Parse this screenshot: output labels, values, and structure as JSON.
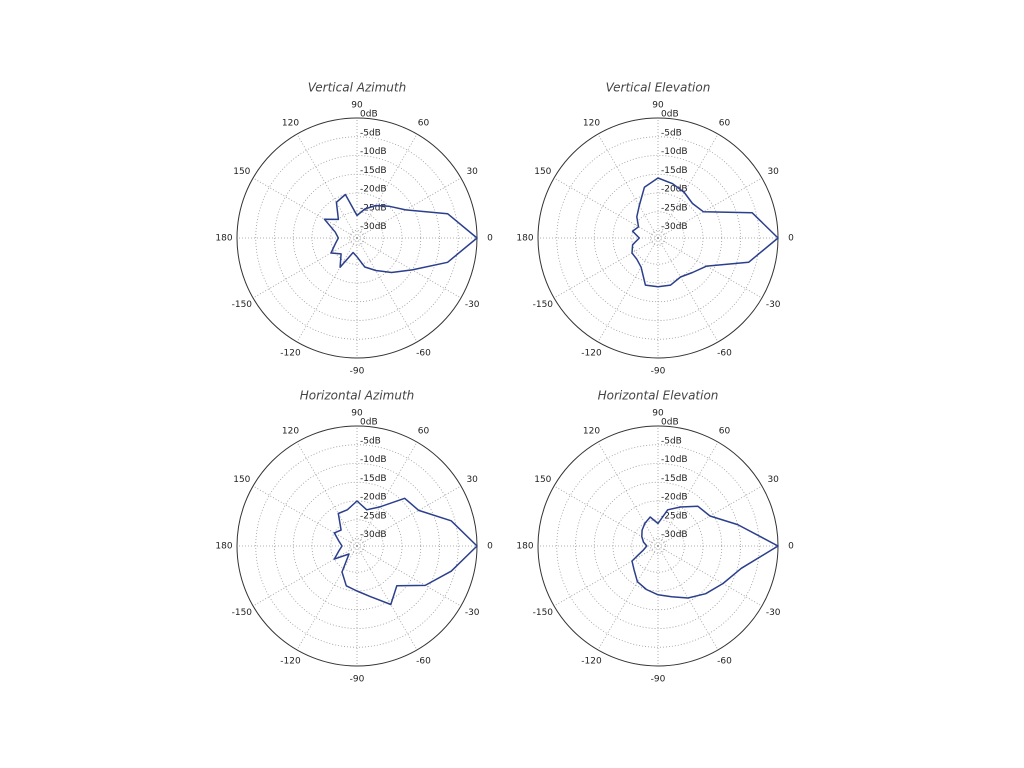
{
  "chart_data": [
    {
      "type": "polar",
      "title": "Vertical Azimuth",
      "theta": [
        0,
        15,
        30,
        45,
        60,
        75,
        90,
        105,
        120,
        135,
        150,
        165,
        180,
        195,
        210,
        225,
        240,
        255,
        270,
        285,
        300,
        315,
        330,
        345
      ],
      "series": [
        {
          "color": "#2b3f8c",
          "values": [
            0,
            -7,
            -17,
            -20,
            -22,
            -24,
            -26,
            -20,
            -21,
            -25,
            -22,
            -26,
            -27,
            -26,
            -24,
            -26,
            -23,
            -28,
            -27,
            -24,
            -22,
            -19,
            -15,
            -7
          ]
        }
      ],
      "rlim": [
        -32,
        0
      ],
      "rticks": [
        {
          "value": 0,
          "label": "0dB"
        },
        {
          "value": -5,
          "label": "-5dB"
        },
        {
          "value": -10,
          "label": "-10dB"
        },
        {
          "value": -15,
          "label": "-15dB"
        },
        {
          "value": -20,
          "label": "-20dB"
        },
        {
          "value": -25,
          "label": "-25dB"
        },
        {
          "value": -30,
          "label": "-30dB"
        }
      ],
      "thetaticks": [
        0,
        30,
        60,
        90,
        120,
        150,
        180,
        -150,
        -120,
        -90,
        -60,
        -30
      ],
      "grid": true
    },
    {
      "type": "polar",
      "title": "Vertical Elevation",
      "theta": [
        0,
        15,
        30,
        45,
        60,
        75,
        90,
        105,
        120,
        135,
        150,
        165,
        180,
        195,
        210,
        225,
        240,
        255,
        270,
        285,
        300,
        315,
        330,
        345
      ],
      "series": [
        {
          "color": "#2b3f8c",
          "values": [
            0,
            -6,
            -18,
            -19,
            -18,
            -17,
            -16,
            -18,
            -22,
            -24,
            -26,
            -25,
            -27,
            -25,
            -24,
            -24,
            -23,
            -19,
            -19,
            -19,
            -20,
            -19,
            -17,
            -7
          ]
        }
      ],
      "rlim": [
        -32,
        0
      ],
      "rticks": [
        {
          "value": 0,
          "label": "0dB"
        },
        {
          "value": -5,
          "label": "-5dB"
        },
        {
          "value": -10,
          "label": "-10dB"
        },
        {
          "value": -15,
          "label": "-15dB"
        },
        {
          "value": -20,
          "label": "-20dB"
        },
        {
          "value": -25,
          "label": "-25dB"
        },
        {
          "value": -30,
          "label": "-30dB"
        }
      ],
      "thetaticks": [
        0,
        30,
        60,
        90,
        120,
        150,
        180,
        -150,
        -120,
        -90,
        -60,
        -30
      ],
      "grid": true
    },
    {
      "type": "polar",
      "title": "Horizontal Azimuth",
      "theta": [
        0,
        15,
        30,
        45,
        60,
        75,
        90,
        105,
        120,
        135,
        150,
        165,
        180,
        195,
        210,
        225,
        240,
        255,
        270,
        285,
        300,
        315,
        330,
        345
      ],
      "series": [
        {
          "color": "#2b3f8c",
          "values": [
            0,
            -6,
            -13,
            -14,
            -20,
            -22,
            -20,
            -22,
            -22,
            -26,
            -25,
            -27,
            -28,
            -27,
            -25,
            -29,
            -24,
            -21,
            -20,
            -18,
            -14,
            -17,
            -11,
            -6
          ]
        }
      ],
      "rlim": [
        -32,
        0
      ],
      "rticks": [
        {
          "value": 0,
          "label": "0dB"
        },
        {
          "value": -5,
          "label": "-5dB"
        },
        {
          "value": -10,
          "label": "-10dB"
        },
        {
          "value": -15,
          "label": "-15dB"
        },
        {
          "value": -20,
          "label": "-20dB"
        },
        {
          "value": -25,
          "label": "-25dB"
        },
        {
          "value": -30,
          "label": "-30dB"
        }
      ],
      "thetaticks": [
        0,
        30,
        60,
        90,
        120,
        150,
        180,
        -150,
        -120,
        -90,
        -60,
        -30
      ],
      "grid": true
    },
    {
      "type": "polar",
      "title": "Horizontal Elevation",
      "theta": [
        0,
        15,
        30,
        45,
        60,
        75,
        90,
        105,
        120,
        135,
        150,
        165,
        180,
        195,
        210,
        225,
        240,
        255,
        270,
        285,
        300,
        315,
        330,
        345
      ],
      "series": [
        {
          "color": "#2b3f8c",
          "values": [
            0,
            -10,
            -16,
            -17,
            -20,
            -22,
            -26,
            -24,
            -25,
            -26,
            -27,
            -28,
            -29,
            -28,
            -24,
            -23,
            -21,
            -20,
            -19,
            -18,
            -16,
            -14,
            -12,
            -9
          ]
        }
      ],
      "rlim": [
        -32,
        0
      ],
      "rticks": [
        {
          "value": 0,
          "label": "0dB"
        },
        {
          "value": -5,
          "label": "-5dB"
        },
        {
          "value": -10,
          "label": "-10dB"
        },
        {
          "value": -15,
          "label": "-15dB"
        },
        {
          "value": -20,
          "label": "-20dB"
        },
        {
          "value": -25,
          "label": "-25dB"
        },
        {
          "value": -30,
          "label": "-30dB"
        }
      ],
      "thetaticks": [
        0,
        30,
        60,
        90,
        120,
        150,
        180,
        -150,
        -120,
        -90,
        -60,
        -30
      ],
      "grid": true
    }
  ]
}
